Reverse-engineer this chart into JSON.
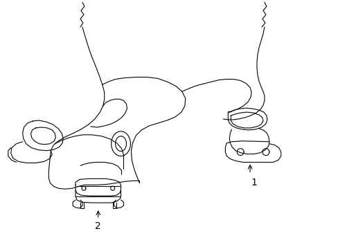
{
  "background_color": "#ffffff",
  "line_color": "#000000",
  "line_width": 0.8,
  "label1": "1",
  "label2": "2",
  "figsize": [
    4.89,
    3.6
  ],
  "dpi": 100
}
